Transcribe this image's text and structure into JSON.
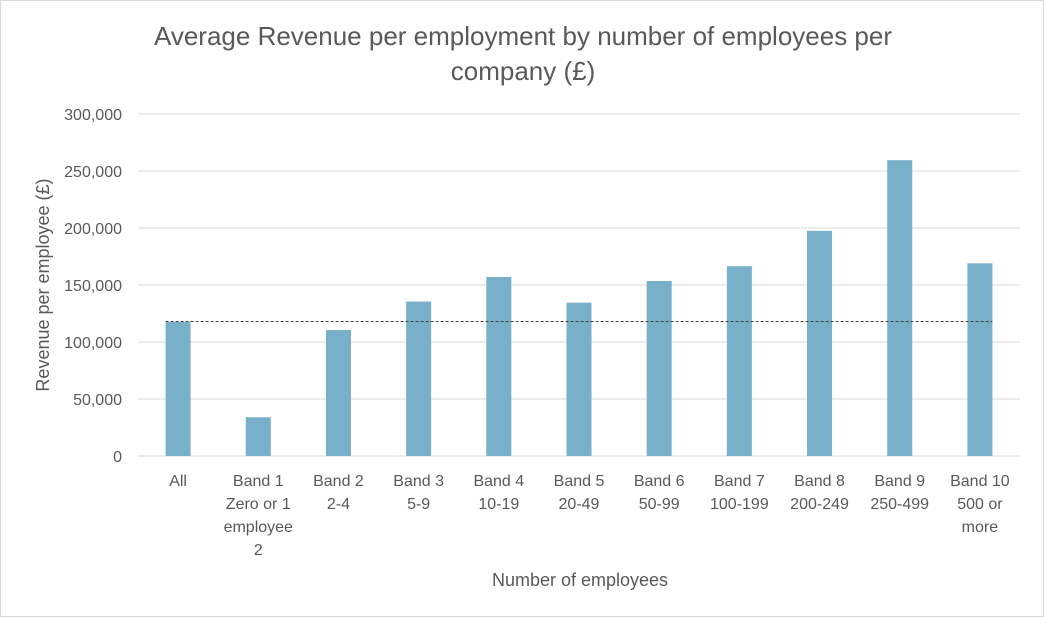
{
  "chart_data": {
    "type": "bar",
    "title_lines": [
      "Average Revenue per employment by number of employees per",
      "company (£)"
    ],
    "xlabel": "Number of employees",
    "ylabel": "Revenue per employee (£)",
    "ylim": [
      0,
      300000
    ],
    "yticks": [
      0,
      50000,
      100000,
      150000,
      200000,
      250000,
      300000
    ],
    "ytick_labels": [
      "0",
      "50,000",
      "100,000",
      "150,000",
      "200,000",
      "250,000",
      "300,000"
    ],
    "categories": [
      [
        "All"
      ],
      [
        "Band 1",
        "Zero or 1",
        "employee",
        "2"
      ],
      [
        "Band 2",
        "2-4"
      ],
      [
        "Band 3",
        "5-9"
      ],
      [
        "Band 4",
        "10-19"
      ],
      [
        "Band 5",
        "20-49"
      ],
      [
        "Band 6",
        "50-99"
      ],
      [
        "Band 7",
        "100-199"
      ],
      [
        "Band 8",
        "200-249"
      ],
      [
        "Band 9",
        "250-499"
      ],
      [
        "Band 10",
        "500 or",
        "more"
      ]
    ],
    "values": [
      117500,
      34000,
      110500,
      135500,
      157000,
      134500,
      153500,
      166500,
      197500,
      259500,
      169000
    ],
    "reference_line": {
      "value": 118000,
      "style": "dashed"
    },
    "gridlines": true,
    "legend": "none",
    "colors": {
      "bar": "#78afc9",
      "grid": "#d9d9d9",
      "text": "#595959",
      "reference": "#404040"
    }
  }
}
